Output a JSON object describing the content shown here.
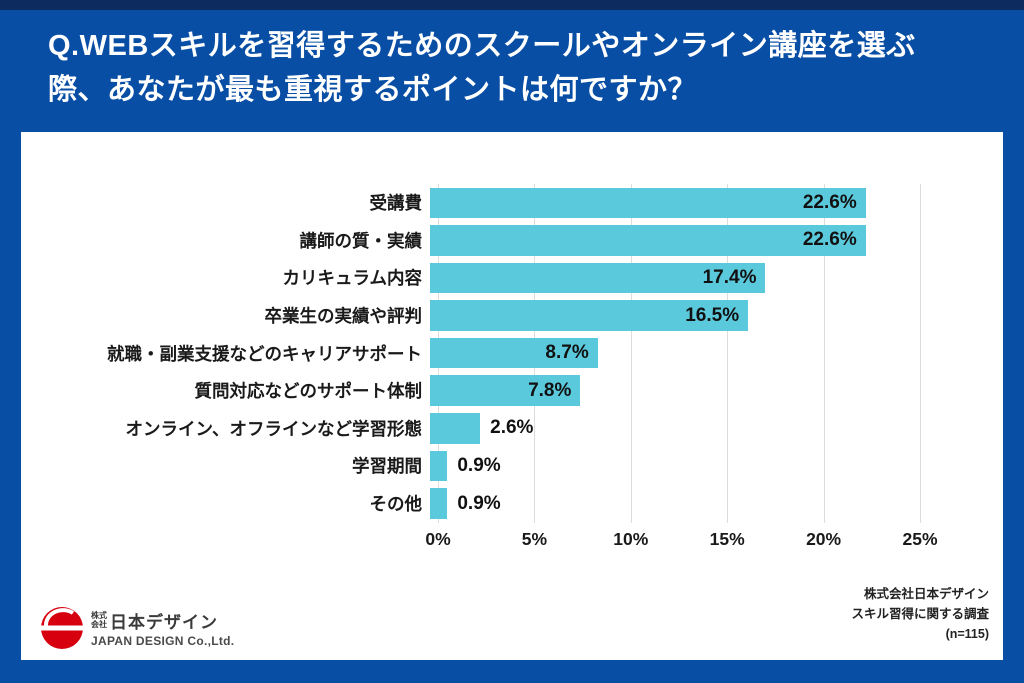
{
  "header": {
    "title_lines": [
      "Q.WEBスキルを習得するためのスクールやオンライン講座を選ぶ",
      "際、あなたが最も重視するポイントは何ですか？"
    ]
  },
  "chart_data": {
    "type": "bar",
    "orientation": "horizontal",
    "categories": [
      "受講費",
      "講師の質・実績",
      "カリキュラム内容",
      "卒業生の実績や評判",
      "就職・副業支援などのキャリアサポート",
      "質問対応などのサポート体制",
      "オンライン、オフラインなど学習形態",
      "学習期間",
      "その他"
    ],
    "values": [
      22.6,
      22.6,
      17.4,
      16.5,
      8.7,
      7.8,
      2.6,
      0.9,
      0.9
    ],
    "value_labels": [
      "22.6%",
      "22.6%",
      "17.4%",
      "16.5%",
      "8.7%",
      "7.8%",
      "2.6%",
      "0.9%",
      "0.9%"
    ],
    "x_tick_labels": [
      "0%",
      "5%",
      "10%",
      "15%",
      "20%",
      "25%"
    ],
    "x_tick_values": [
      0,
      5,
      10,
      15,
      20,
      25
    ],
    "xlim": [
      0,
      25
    ],
    "xlabel": "",
    "ylabel": "",
    "grid": "vertical",
    "legend": "none",
    "label_inside_threshold": 5,
    "bar_color": "#5BC9DC"
  },
  "footer": {
    "logo": {
      "company_prefix_top": "株式",
      "company_prefix_bottom": "会社",
      "company_name": "日本デザイン",
      "company_en": "JAPAN DESIGN Co.,Ltd."
    },
    "source_lines": [
      "株式会社日本デザイン",
      "スキル習得に関する調査",
      "(n=115)"
    ]
  },
  "colors": {
    "background_blue": "#084EA4",
    "top_strip_navy": "#0D2B5E",
    "card_white": "#FFFFFF",
    "bar_teal": "#5BC9DC",
    "gridline_gray": "#DCDCDC",
    "text_dark": "#1A1A1A",
    "title_white": "#FFFFFF",
    "logo_red": "#D7000F"
  }
}
